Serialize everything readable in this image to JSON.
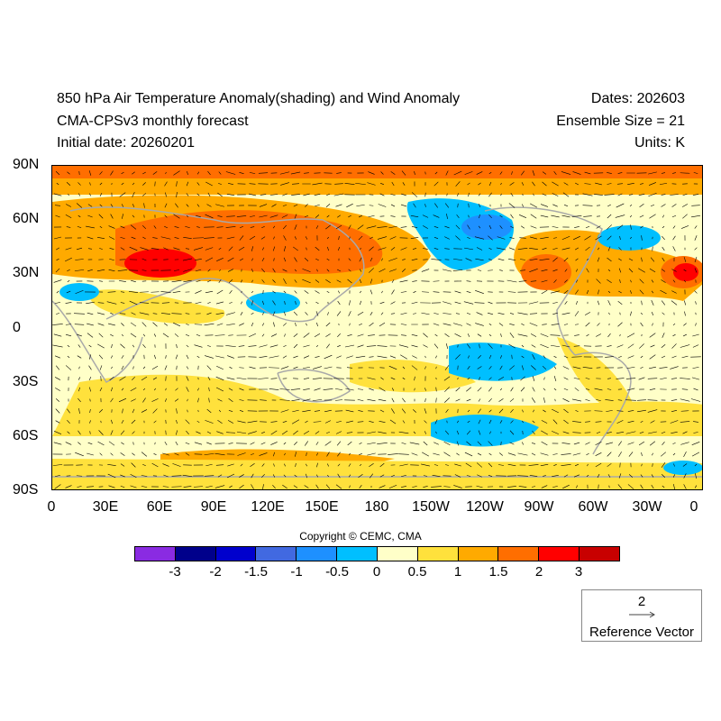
{
  "header": {
    "title": "850 hPa Air Temperature Anomaly(shading) and Wind Anomaly",
    "subtitle": "CMA-CPSv3 monthly forecast",
    "initial_date": "Initial date: 20260201",
    "dates": "Dates: 202603",
    "ensemble": "Ensemble Size = 21",
    "units": "Units: K"
  },
  "lat_labels": [
    "90N",
    "60N",
    "30N",
    "0",
    "30S",
    "60S",
    "90S"
  ],
  "lon_labels": [
    "0",
    "30E",
    "60E",
    "90E",
    "120E",
    "150E",
    "180",
    "150W",
    "120W",
    "90W",
    "60W",
    "30W",
    "0"
  ],
  "copyright": "Copyright © CEMC, CMA",
  "colorbar": {
    "colors": [
      "#8a2be2",
      "#00008b",
      "#0000cd",
      "#4169e1",
      "#1e90ff",
      "#00bfff",
      "#ffffc8",
      "#ffe13c",
      "#ffaa00",
      "#ff6e00",
      "#ff0000",
      "#c80000"
    ],
    "labels": [
      "-3",
      "-2",
      "-1.5",
      "-1",
      "-0.5",
      "0",
      "0.5",
      "1",
      "1.5",
      "2",
      "3"
    ]
  },
  "reference_vector": {
    "value": "2",
    "label": "Reference Vector"
  },
  "land_color": "#a9a9a9"
}
